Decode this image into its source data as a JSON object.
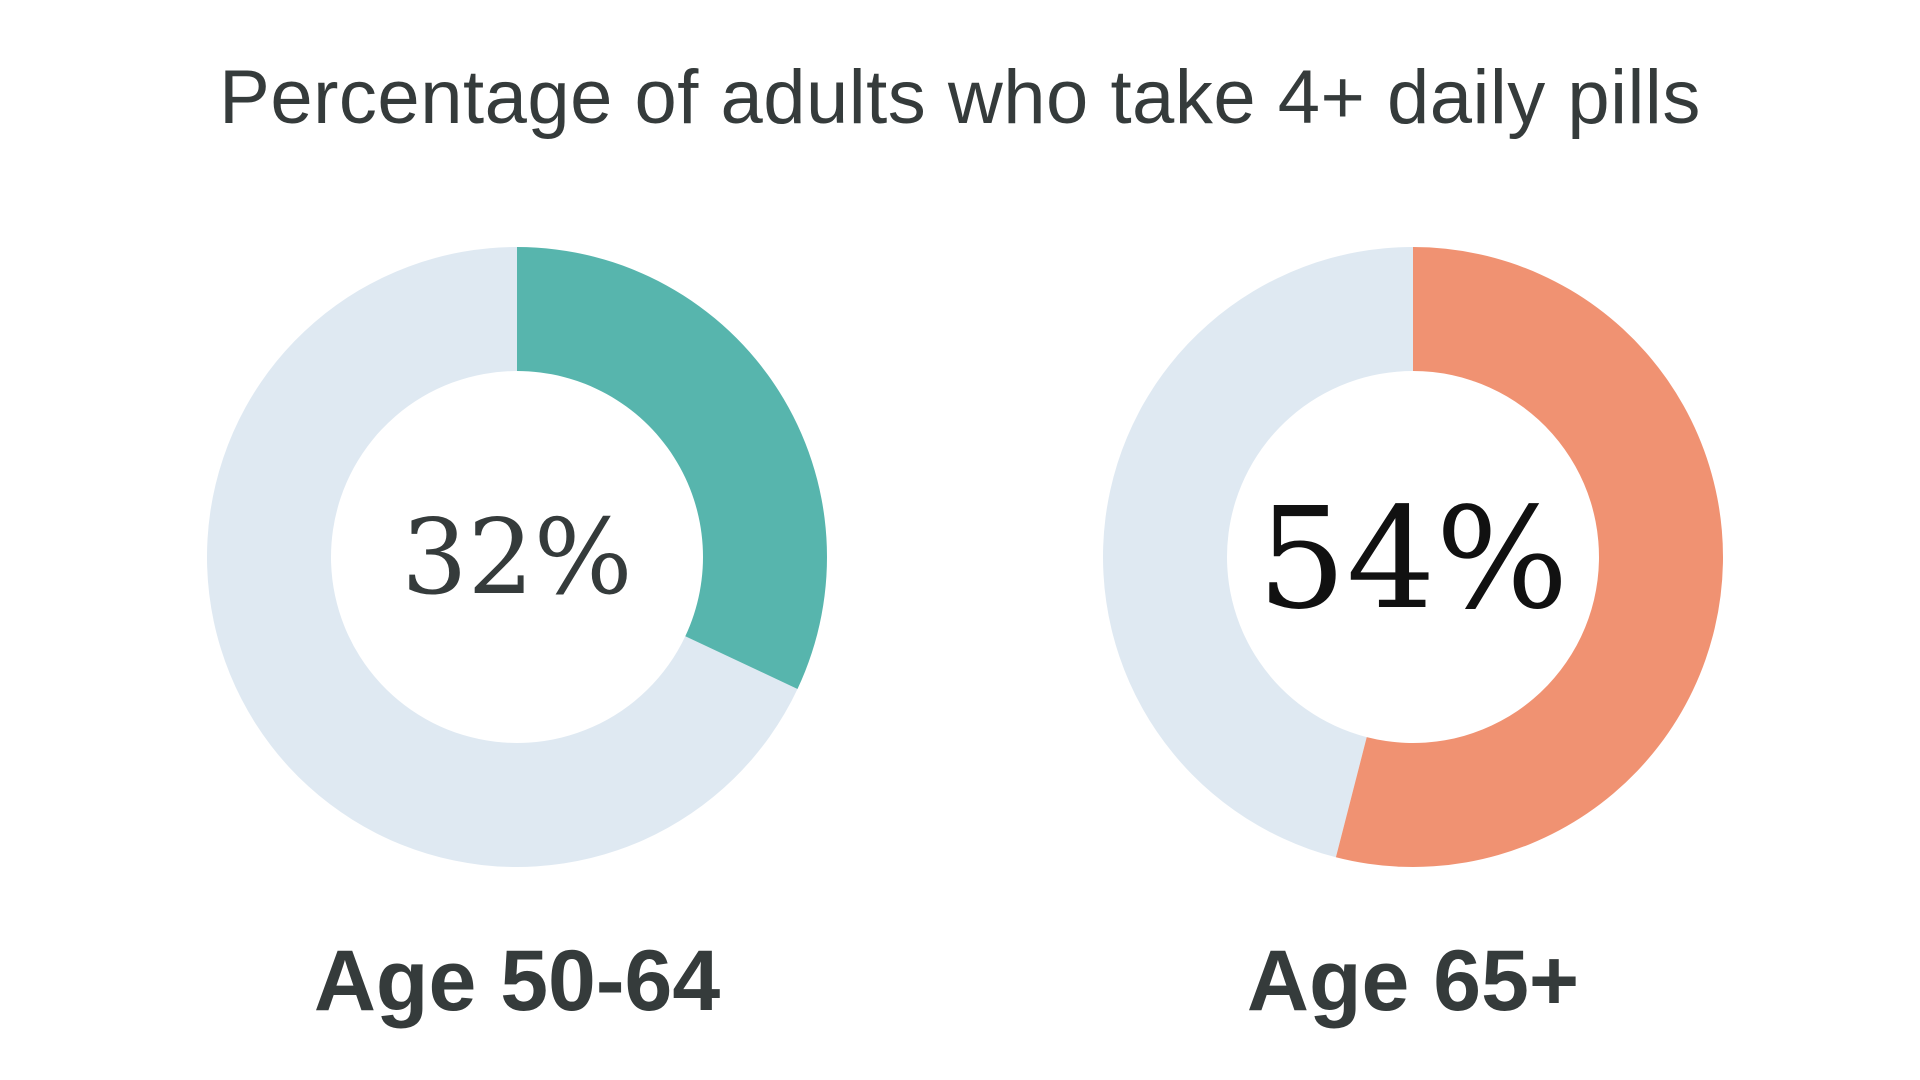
{
  "chart_data": {
    "type": "pie",
    "title": "Percentage of adults who take 4+ daily pills",
    "charts": [
      {
        "category": "Age 50-64",
        "value": 32,
        "value_label": "32%",
        "color": "#57b5ad",
        "remainder_color": "#dfe9f2",
        "value_text_color": "#353b3b"
      },
      {
        "category": "Age 65+",
        "value": 54,
        "value_label": "54%",
        "color": "#f09272",
        "remainder_color": "#dfe9f2",
        "value_text_color": "#111111"
      }
    ]
  }
}
